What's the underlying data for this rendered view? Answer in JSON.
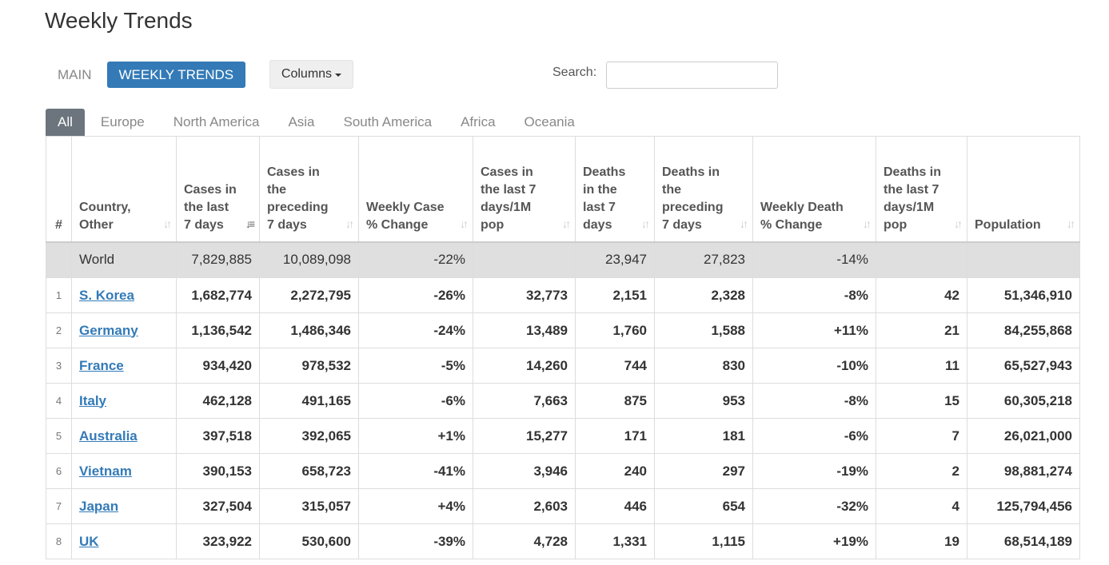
{
  "page": {
    "title": "Weekly Trends"
  },
  "view_nav": {
    "main": "MAIN",
    "weekly": "WEEKLY TRENDS"
  },
  "columns_button": {
    "label": "Columns"
  },
  "search": {
    "label": "Search:",
    "value": "",
    "placeholder": ""
  },
  "region_tabs": [
    "All",
    "Europe",
    "North America",
    "Asia",
    "South America",
    "Africa",
    "Oceania"
  ],
  "colors": {
    "accent": "#337ab7",
    "active_tab": "#6c757d",
    "world_row": "#dfdfdf"
  },
  "table": {
    "headers": [
      "#",
      "Country, Other",
      "Cases in the last 7 days",
      "Cases in the preceding 7 days",
      "Weekly Case % Change",
      "Cases in the last 7 days/1M pop",
      "Deaths in the last 7 days",
      "Deaths in the preceding 7 days",
      "Weekly Death % Change",
      "Deaths in the last 7 days/1M pop",
      "Population"
    ],
    "world": [
      "",
      "World",
      "7,829,885",
      "10,089,098",
      "-22%",
      "",
      "23,947",
      "27,823",
      "-14%",
      "",
      ""
    ],
    "rows": [
      [
        "1",
        "S. Korea",
        "1,682,774",
        "2,272,795",
        "-26%",
        "32,773",
        "2,151",
        "2,328",
        "-8%",
        "42",
        "51,346,910"
      ],
      [
        "2",
        "Germany",
        "1,136,542",
        "1,486,346",
        "-24%",
        "13,489",
        "1,760",
        "1,588",
        "+11%",
        "21",
        "84,255,868"
      ],
      [
        "3",
        "France",
        "934,420",
        "978,532",
        "-5%",
        "14,260",
        "744",
        "830",
        "-10%",
        "11",
        "65,527,943"
      ],
      [
        "4",
        "Italy",
        "462,128",
        "491,165",
        "-6%",
        "7,663",
        "875",
        "953",
        "-8%",
        "15",
        "60,305,218"
      ],
      [
        "5",
        "Australia",
        "397,518",
        "392,065",
        "+1%",
        "15,277",
        "171",
        "181",
        "-6%",
        "7",
        "26,021,000"
      ],
      [
        "6",
        "Vietnam",
        "390,153",
        "658,723",
        "-41%",
        "3,946",
        "240",
        "297",
        "-19%",
        "2",
        "98,881,274"
      ],
      [
        "7",
        "Japan",
        "327,504",
        "315,057",
        "+4%",
        "2,603",
        "446",
        "654",
        "-32%",
        "4",
        "125,794,456"
      ],
      [
        "8",
        "UK",
        "323,922",
        "530,600",
        "-39%",
        "4,728",
        "1,331",
        "1,115",
        "+19%",
        "19",
        "68,514,189"
      ]
    ]
  }
}
